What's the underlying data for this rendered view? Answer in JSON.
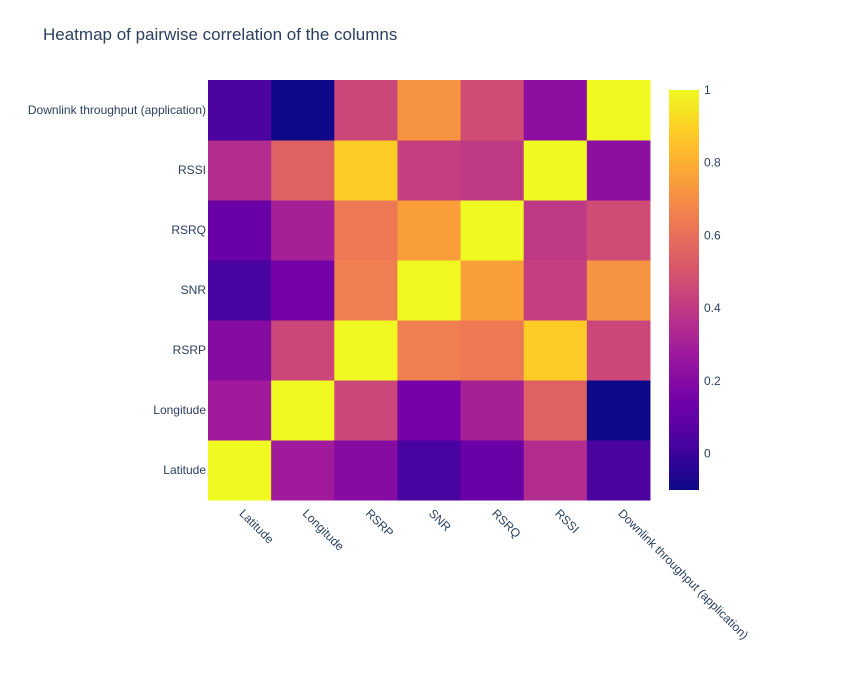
{
  "chart_data": {
    "type": "heatmap",
    "title": "Heatmap of pairwise correlation of the columns",
    "x_categories": [
      "Latitude",
      "Longitude",
      "RSRP",
      "SNR",
      "RSRQ",
      "RSSI",
      "Downlink throughput (application)"
    ],
    "y_categories": [
      "Latitude",
      "Longitude",
      "RSRP",
      "SNR",
      "RSRQ",
      "RSSI",
      "Downlink throughput (application)"
    ],
    "z": [
      [
        1.0,
        0.28,
        0.2,
        0.03,
        0.12,
        0.35,
        0.04
      ],
      [
        0.28,
        1.0,
        0.45,
        0.15,
        0.3,
        0.55,
        -0.1
      ],
      [
        0.2,
        0.45,
        1.0,
        0.65,
        0.63,
        0.88,
        0.45
      ],
      [
        0.03,
        0.15,
        0.65,
        1.0,
        0.75,
        0.42,
        0.72
      ],
      [
        0.12,
        0.3,
        0.63,
        0.75,
        1.0,
        0.4,
        0.47
      ],
      [
        0.35,
        0.55,
        0.88,
        0.42,
        0.4,
        1.0,
        0.22
      ],
      [
        0.04,
        -0.1,
        0.45,
        0.72,
        0.47,
        0.22,
        1.0
      ]
    ],
    "zmin": -0.1,
    "zmax": 1.0,
    "colorscale": "plasma",
    "colorbar_ticks": [
      {
        "value": 0,
        "label": "0"
      },
      {
        "value": 0.2,
        "label": "0.2"
      },
      {
        "value": 0.4,
        "label": "0.4"
      },
      {
        "value": 0.6,
        "label": "0.6"
      },
      {
        "value": 0.8,
        "label": "0.8"
      },
      {
        "value": 1,
        "label": "1"
      }
    ],
    "colors": {
      "text": "#2a3f5f",
      "stops": [
        "#0d0887",
        "#46039f",
        "#7201a8",
        "#9c179e",
        "#bd3786",
        "#d8576b",
        "#ed7953",
        "#fb9f3a",
        "#fdca26",
        "#f0f921"
      ]
    }
  }
}
